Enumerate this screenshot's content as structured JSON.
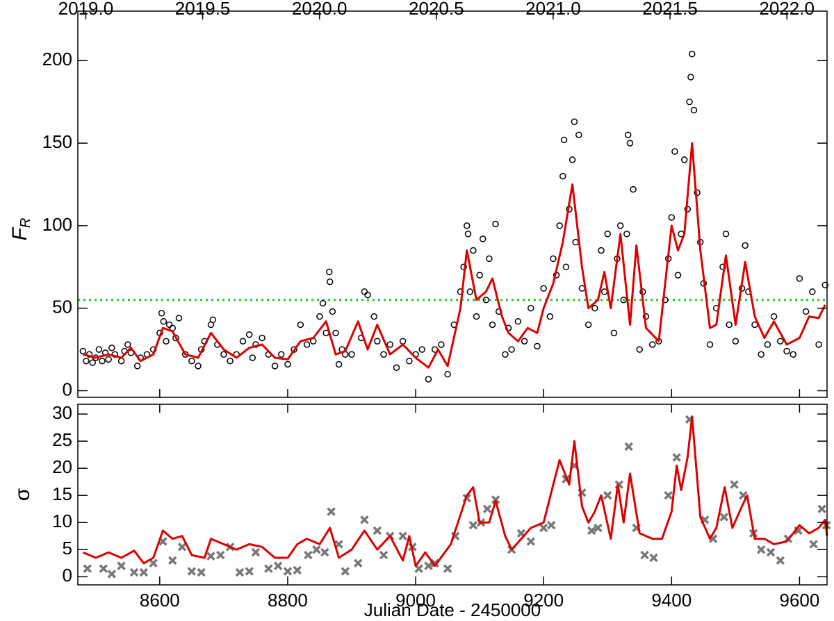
{
  "chart_data": [
    {
      "type": "scatter",
      "ylabel": "F",
      "ylabel_subscript": "R",
      "xlim": [
        8472,
        9643
      ],
      "xticks": [
        8600,
        8800,
        9000,
        9200,
        9400,
        9600
      ],
      "xtick_labels": false,
      "x2lim": [
        2018.966,
        2022.172
      ],
      "x2ticks": [
        {
          "value": 2019,
          "label": "2019.0"
        },
        {
          "value": 2019.5,
          "label": "2019.5"
        },
        {
          "value": 2020,
          "label": "2020.0"
        },
        {
          "value": 2020.5,
          "label": "2020.5"
        },
        {
          "value": 2021,
          "label": "2021.0"
        },
        {
          "value": 2021.5,
          "label": "2021.5"
        },
        {
          "value": 2022,
          "label": "2022.0"
        }
      ],
      "ylim": [
        -4,
        230
      ],
      "yticks": [
        0,
        50,
        100,
        150,
        200
      ],
      "hline": {
        "value": 55,
        "color": "#22cc22",
        "style": "dotted"
      },
      "series": [
        {
          "mode": "markers",
          "marker": "circle",
          "color": "#000000",
          "x": [
            8480,
            8485,
            8490,
            8495,
            8500,
            8505,
            8510,
            8515,
            8520,
            8525,
            8530,
            8540,
            8545,
            8550,
            8555,
            8565,
            8570,
            8580,
            8590,
            8600,
            8603,
            8606,
            8610,
            8615,
            8620,
            8625,
            8630,
            8640,
            8650,
            8660,
            8665,
            8670,
            8680,
            8683,
            8690,
            8700,
            8710,
            8720,
            8730,
            8740,
            8745,
            8750,
            8760,
            8770,
            8780,
            8790,
            8800,
            8810,
            8820,
            8830,
            8840,
            8850,
            8855,
            8860,
            8865,
            8866,
            8870,
            8875,
            8880,
            8885,
            8890,
            8900,
            8915,
            8920,
            8925,
            8935,
            8940,
            8950,
            8960,
            8970,
            8980,
            8990,
            9000,
            9010,
            9020,
            9030,
            9040,
            9050,
            9060,
            9070,
            9075,
            9080,
            9082,
            9085,
            9090,
            9095,
            9100,
            9105,
            9110,
            9115,
            9120,
            9125,
            9130,
            9140,
            9145,
            9150,
            9160,
            9170,
            9180,
            9190,
            9200,
            9210,
            9215,
            9220,
            9225,
            9230,
            9232,
            9235,
            9240,
            9245,
            9248,
            9250,
            9255,
            9260,
            9270,
            9280,
            9290,
            9295,
            9300,
            9310,
            9315,
            9320,
            9325,
            9330,
            9332,
            9335,
            9340,
            9350,
            9355,
            9360,
            9370,
            9380,
            9390,
            9395,
            9400,
            9405,
            9410,
            9415,
            9420,
            9425,
            9428,
            9430,
            9432,
            9435,
            9440,
            9445,
            9450,
            9460,
            9470,
            9480,
            9485,
            9490,
            9500,
            9510,
            9515,
            9520,
            9530,
            9540,
            9550,
            9560,
            9570,
            9580,
            9590,
            9600,
            9610,
            9620,
            9630,
            9640
          ],
          "values": [
            24,
            18,
            22,
            17,
            20,
            25,
            18,
            23,
            19,
            26,
            22,
            18,
            24,
            28,
            23,
            15,
            20,
            22,
            25,
            35,
            47,
            42,
            30,
            40,
            38,
            32,
            44,
            22,
            18,
            15,
            25,
            30,
            40,
            43,
            28,
            22,
            18,
            22,
            30,
            34,
            20,
            28,
            32,
            22,
            15,
            22,
            16,
            25,
            40,
            28,
            30,
            45,
            53,
            35,
            72,
            66,
            48,
            35,
            16,
            25,
            22,
            22,
            32,
            60,
            58,
            45,
            30,
            22,
            28,
            14,
            30,
            18,
            22,
            25,
            7,
            25,
            28,
            10,
            40,
            60,
            75,
            100,
            95,
            60,
            85,
            45,
            70,
            92,
            55,
            80,
            40,
            101,
            48,
            22,
            38,
            25,
            42,
            30,
            50,
            27,
            62,
            45,
            80,
            70,
            100,
            130,
            152,
            75,
            110,
            140,
            163,
            90,
            155,
            62,
            40,
            50,
            85,
            60,
            95,
            35,
            80,
            100,
            55,
            95,
            155,
            150,
            122,
            25,
            60,
            45,
            28,
            30,
            55,
            80,
            105,
            145,
            70,
            95,
            140,
            110,
            175,
            190,
            204,
            170,
            120,
            90,
            65,
            28,
            50,
            75,
            95,
            40,
            30,
            62,
            88,
            60,
            40,
            22,
            28,
            45,
            30,
            24,
            22,
            68,
            48,
            60,
            28,
            64
          ]
        },
        {
          "mode": "line",
          "color": "#dd0000",
          "x": [
            8480,
            8500,
            8520,
            8540,
            8555,
            8570,
            8590,
            8605,
            8620,
            8640,
            8660,
            8680,
            8700,
            8720,
            8740,
            8760,
            8780,
            8800,
            8820,
            8840,
            8860,
            8875,
            8890,
            8910,
            8925,
            8940,
            8960,
            8980,
            9000,
            9020,
            9035,
            9050,
            9070,
            9080,
            9095,
            9110,
            9120,
            9135,
            9145,
            9160,
            9175,
            9190,
            9200,
            9215,
            9230,
            9245,
            9260,
            9270,
            9285,
            9295,
            9305,
            9320,
            9335,
            9345,
            9360,
            9380,
            9400,
            9410,
            9420,
            9432,
            9445,
            9460,
            9470,
            9485,
            9500,
            9515,
            9530,
            9545,
            9560,
            9580,
            9600,
            9615,
            9630,
            9640
          ],
          "values": [
            22,
            20,
            22,
            20,
            26,
            18,
            22,
            38,
            36,
            22,
            20,
            35,
            25,
            20,
            26,
            28,
            20,
            19,
            30,
            32,
            42,
            22,
            24,
            42,
            25,
            40,
            22,
            28,
            20,
            14,
            25,
            15,
            50,
            85,
            55,
            60,
            68,
            45,
            35,
            30,
            38,
            35,
            50,
            65,
            90,
            125,
            75,
            50,
            55,
            72,
            50,
            95,
            40,
            88,
            38,
            30,
            100,
            85,
            95,
            150,
            85,
            38,
            40,
            82,
            40,
            78,
            45,
            32,
            42,
            28,
            32,
            45,
            44,
            52
          ]
        }
      ]
    },
    {
      "type": "scatter",
      "ylabel": "σ",
      "xlabel": "Julian Date - 2450000",
      "xlim": [
        8472,
        9643
      ],
      "xticks": [
        8600,
        8800,
        9000,
        9200,
        9400,
        9600
      ],
      "xtick_labels": true,
      "ylim": [
        -1.5,
        31.8
      ],
      "yticks": [
        0,
        5,
        10,
        15,
        20,
        25,
        30
      ],
      "series": [
        {
          "mode": "markers",
          "marker": "cross",
          "color": "#777777",
          "x": [
            8487,
            8512,
            8525,
            8540,
            8560,
            8575,
            8590,
            8605,
            8620,
            8635,
            8650,
            8665,
            8680,
            8695,
            8710,
            8725,
            8740,
            8750,
            8770,
            8785,
            8800,
            8815,
            8832,
            8845,
            8858,
            8868,
            8880,
            8890,
            8910,
            8920,
            8940,
            8950,
            8960,
            8980,
            8995,
            9005,
            9020,
            9030,
            9050,
            9062,
            9080,
            9090,
            9102,
            9112,
            9125,
            9150,
            9165,
            9180,
            9200,
            9212,
            9235,
            9248,
            9260,
            9275,
            9285,
            9300,
            9318,
            9333,
            9345,
            9358,
            9372,
            9395,
            9408,
            9428,
            9452,
            9465,
            9482,
            9498,
            9512,
            9528,
            9540,
            9555,
            9570,
            9582,
            9598,
            9622,
            9635,
            9642
          ],
          "values": [
            1.5,
            1.5,
            0.5,
            2,
            0.8,
            0.8,
            2.5,
            6.5,
            3,
            5.5,
            1,
            0.8,
            3.8,
            4,
            5.5,
            0.8,
            1,
            4.5,
            1.5,
            2,
            1,
            1.2,
            4,
            5,
            4.5,
            12,
            6,
            1,
            2.5,
            10.5,
            8.5,
            4,
            7.5,
            7.5,
            5.5,
            1.5,
            2,
            2.5,
            1.5,
            7.5,
            14.5,
            9.5,
            10,
            12.5,
            14.2,
            5,
            8,
            6.5,
            9,
            9.5,
            18,
            20.5,
            15.5,
            8.5,
            9,
            15,
            17,
            24,
            9,
            4,
            3.5,
            15,
            22,
            29,
            10.5,
            7,
            11,
            17,
            15,
            8,
            5,
            4.5,
            3,
            7,
            8.5,
            6,
            12.5,
            9.5
          ]
        },
        {
          "mode": "line",
          "color": "#dd0000",
          "x": [
            8480,
            8500,
            8520,
            8540,
            8560,
            8575,
            8590,
            8605,
            8620,
            8635,
            8650,
            8670,
            8680,
            8700,
            8720,
            8740,
            8760,
            8780,
            8800,
            8815,
            8830,
            8850,
            8866,
            8880,
            8900,
            8920,
            8940,
            8960,
            8980,
            8990,
            9000,
            9015,
            9030,
            9055,
            9080,
            9090,
            9100,
            9115,
            9125,
            9140,
            9150,
            9165,
            9180,
            9200,
            9215,
            9225,
            9240,
            9248,
            9260,
            9270,
            9280,
            9290,
            9305,
            9316,
            9325,
            9335,
            9350,
            9370,
            9385,
            9400,
            9408,
            9415,
            9425,
            9432,
            9445,
            9460,
            9470,
            9483,
            9495,
            9510,
            9518,
            9530,
            9545,
            9560,
            9580,
            9600,
            9615,
            9630,
            9640,
            9643
          ],
          "values": [
            4.5,
            3.5,
            4.5,
            3.5,
            4.8,
            2.5,
            3.5,
            8.5,
            7,
            7.5,
            4,
            3.5,
            7,
            6,
            5,
            6,
            5.5,
            3.5,
            3.5,
            6,
            7,
            6,
            9,
            3.5,
            5,
            8.5,
            5,
            7.5,
            3,
            7.5,
            2,
            4.5,
            2,
            6,
            15,
            16.5,
            10,
            10,
            14,
            7.5,
            5,
            7,
            9,
            10,
            17,
            21.5,
            17,
            25,
            13,
            10,
            12,
            15,
            7,
            17,
            10,
            19,
            8,
            7,
            7,
            12,
            20.5,
            16,
            22,
            29.5,
            11,
            7,
            9,
            16.5,
            9,
            13,
            15,
            7,
            7,
            6,
            6.5,
            9.5,
            8,
            9,
            10.5,
            7.5
          ]
        }
      ]
    }
  ]
}
